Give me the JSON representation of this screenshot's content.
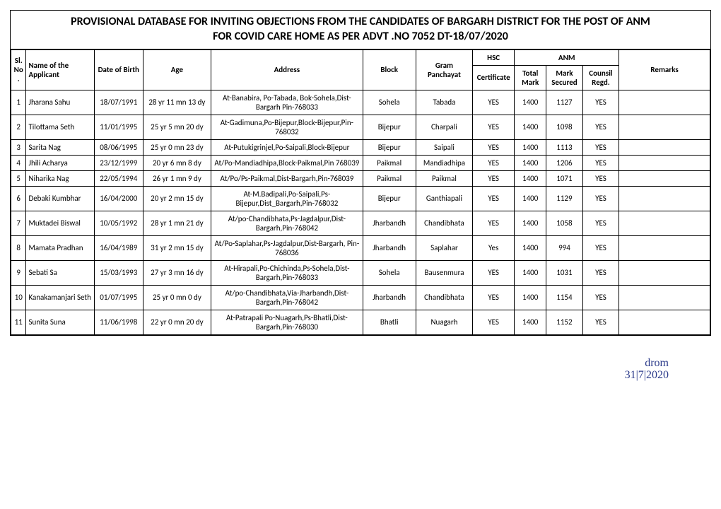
{
  "title_line1": "PROVISIONAL DATABASE FOR INVITING OBJECTIONS  FROM THE CANDIDATES OF BARGARH DISTRICT FOR THE POST OF ANM",
  "title_line2": "FOR COVID CARE HOME  AS PER ADVT .NO 7052 DT-18/07/2020",
  "headers": {
    "sl": "Sl. No.",
    "name": "Name of the Applicant",
    "dob": "Date of Birth",
    "age": "Age",
    "addr": "Address",
    "block": "Block",
    "gp": "Gram Panchayat",
    "hsc": "HSC",
    "cert": "Certificate",
    "anm": "ANM",
    "total": "Total Mark",
    "secured": "Mark Secured",
    "counsil": "Counsil Regd.",
    "remarks": "Remarks"
  },
  "rows": [
    {
      "sl": "1",
      "name": "Jharana Sahu",
      "dob": "18/07/1991",
      "age": "28 yr 11 mn 13 dy",
      "addr": "At-Banabira, Po-Tabada, Bok-Sohela,Dist- Bargarh Pin-768033",
      "block": "Sohela",
      "gp": "Tabada",
      "cert": "YES",
      "total": "1400",
      "sec": "1127",
      "reg": "YES",
      "rem": ""
    },
    {
      "sl": "2",
      "name": "Tilottama Seth",
      "dob": "11/01/1995",
      "age": "25 yr 5 mn 20 dy",
      "addr": "At-Gadimuna,Po-Bijepur,Block-Bijepur,Pin-768032",
      "block": "Bijepur",
      "gp": "Charpali",
      "cert": "YES",
      "total": "1400",
      "sec": "1098",
      "reg": "YES",
      "rem": ""
    },
    {
      "sl": "3",
      "name": "Sarita Nag",
      "dob": "08/06/1995",
      "age": "25 yr 0 mn 23 dy",
      "addr": "At-Putukigrinjel,Po-Saipali,Block-Bijepur",
      "block": "Bijepur",
      "gp": "Saipali",
      "cert": "YES",
      "total": "1400",
      "sec": "1113",
      "reg": "YES",
      "rem": ""
    },
    {
      "sl": "4",
      "name": "Jhili Acharya",
      "dob": "23/12/1999",
      "age": "20 yr 6 mn 8 dy",
      "addr": "At/Po-Mandiadhipa,Block-Paikmal,Pin 768039",
      "block": "Paikmal",
      "gp": "Mandiadhipa",
      "cert": "YES",
      "total": "1400",
      "sec": "1206",
      "reg": "YES",
      "rem": ""
    },
    {
      "sl": "5",
      "name": "Niharika Nag",
      "dob": "22/05/1994",
      "age": "26 yr 1 mn 9 dy",
      "addr": "At/Po/Ps-Paikmal,Dist-Bargarh,Pin-768039",
      "block": "Paikmal",
      "gp": "Paikmal",
      "cert": "YES",
      "total": "1400",
      "sec": "1071",
      "reg": "YES",
      "rem": ""
    },
    {
      "sl": "6",
      "name": "Debaki Kumbhar",
      "dob": "16/04/2000",
      "age": "20 yr 2 mn 15 dy",
      "addr": "At-M.Badipali,Po-Saipali,Ps-Bijepur,Dist_Bargarh,Pin-768032",
      "block": "Bijepur",
      "gp": "Ganthiapali",
      "cert": "YES",
      "total": "1400",
      "sec": "1129",
      "reg": "YES",
      "rem": ""
    },
    {
      "sl": "7",
      "name": "Muktadei Biswal",
      "dob": "10/05/1992",
      "age": "28 yr 1 mn 21 dy",
      "addr": "At/po-Chandibhata,Ps-Jagdalpur,Dist-Bargarh,Pin-768042",
      "block": "Jharbandh",
      "gp": "Chandibhata",
      "cert": "YES",
      "total": "1400",
      "sec": "1058",
      "reg": "YES",
      "rem": ""
    },
    {
      "sl": "8",
      "name": "Mamata Pradhan",
      "dob": "16/04/1989",
      "age": "31 yr 2 mn 15 dy",
      "addr": "At/Po-Saplahar,Ps-Jagdalpur,Dist-Bargarh, Pin-768036",
      "block": "Jharbandh",
      "gp": "Saplahar",
      "cert": "Yes",
      "total": "1400",
      "sec": "994",
      "reg": "YES",
      "rem": ""
    },
    {
      "sl": "9",
      "name": "Sebati Sa",
      "dob": "15/03/1993",
      "age": "27 yr 3 mn 16 dy",
      "addr": "At-Hirapali,Po-Chichinda,Ps-Sohela,Dist-Bargarh,Pin-768033",
      "block": "Sohela",
      "gp": "Bausenmura",
      "cert": "YES",
      "total": "1400",
      "sec": "1031",
      "reg": "YES",
      "rem": ""
    },
    {
      "sl": "10",
      "name": "Kanakamanjari Seth",
      "dob": "01/07/1995",
      "age": "25 yr 0 mn 0 dy",
      "addr": "At/po-Chandibhata,Via-Jharbandh,Dist-Bargarh,Pin-768042",
      "block": "Jharbandh",
      "gp": "Chandibhata",
      "cert": "YES",
      "total": "1400",
      "sec": "1154",
      "reg": "YES",
      "rem": ""
    },
    {
      "sl": "11",
      "name": "Sunita Suna",
      "dob": "11/06/1998",
      "age": "22 yr 0 mn 20 dy",
      "addr": "At-Patrapali Po-Nuagarh,Ps-Bhatli,Dist-Bargarh,Pin-768030",
      "block": "Bhatli",
      "gp": "Nuagarh",
      "cert": "YES",
      "total": "1400",
      "sec": "1152",
      "reg": "YES",
      "rem": ""
    }
  ],
  "signature": {
    "text": "drom",
    "date": "31|7|2020",
    "color": "#2b3a8a"
  }
}
